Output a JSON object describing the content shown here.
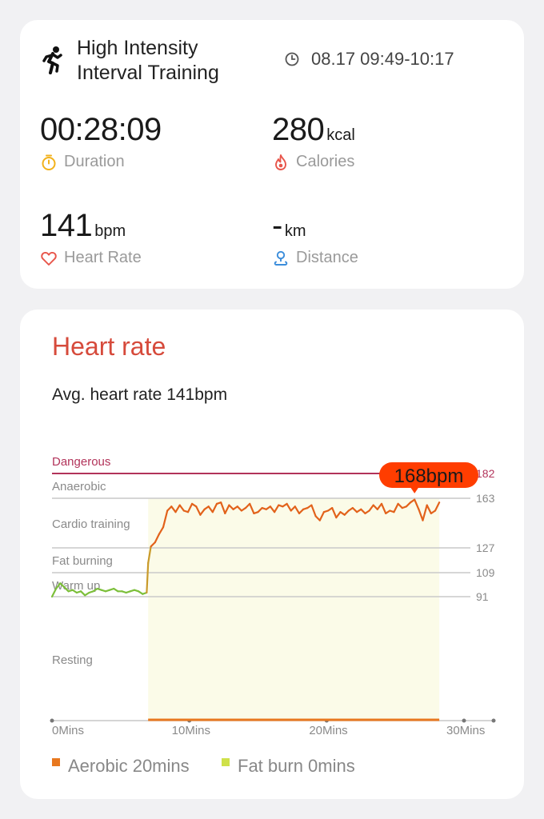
{
  "workout": {
    "icon": "running-person-icon",
    "title_line1": "High Intensity",
    "title_line2": "Interval Training",
    "time_icon": "clock-icon",
    "time_range": "08.17 09:49-10:17"
  },
  "metrics": {
    "duration": {
      "value": "00:28:09",
      "unit": "",
      "label": "Duration",
      "icon": "stopwatch-icon",
      "icon_color": "#f2b21c"
    },
    "calories": {
      "value": "280",
      "unit": "kcal",
      "label": "Calories",
      "icon": "flame-icon",
      "icon_color": "#e8554a"
    },
    "heart_rate": {
      "value": "141",
      "unit": "bpm",
      "label": "Heart Rate",
      "icon": "heart-icon",
      "icon_color": "#e8554a"
    },
    "distance": {
      "value": "-",
      "unit": "km",
      "label": "Distance",
      "icon": "location-pin-icon",
      "icon_color": "#3b8ddb"
    }
  },
  "heart_rate_section": {
    "title": "Heart rate",
    "title_color": "#d64a3b",
    "avg_text": "Avg. heart rate 141bpm"
  },
  "chart_data": {
    "type": "line",
    "title": "",
    "xlabel": "",
    "ylabel": "",
    "x_ticks": [
      "0Mins",
      "10Mins",
      "20Mins",
      "30Mins"
    ],
    "xlim": [
      0,
      30
    ],
    "zones": [
      {
        "name": "Dangerous",
        "threshold": 182,
        "threshold_label": "182",
        "color": "#b2335a"
      },
      {
        "name": "Anaerobic",
        "threshold": 163,
        "threshold_label": "163",
        "color": "#c9c9c9"
      },
      {
        "name": "Cardio training",
        "threshold": 127,
        "threshold_label": "127",
        "color": "#c9c9c9"
      },
      {
        "name": "Fat burning",
        "threshold": 109,
        "threshold_label": "109",
        "color": "#c9c9c9"
      },
      {
        "name": "Warm up",
        "threshold": 91,
        "threshold_label": "91",
        "color": "#c9c9c9"
      },
      {
        "name": "Resting",
        "threshold": null,
        "threshold_label": "",
        "color": "#c9c9c9"
      }
    ],
    "series": [
      {
        "name": "",
        "color_low": "#7cbf3a",
        "color_high": "#e2621b",
        "x": [
          0,
          0.3,
          0.6,
          0.9,
          1.2,
          1.5,
          1.8,
          2.1,
          2.4,
          2.7,
          3.0,
          3.3,
          3.6,
          3.9,
          4.2,
          4.5,
          4.8,
          5.1,
          5.4,
          5.7,
          6.0,
          6.3,
          6.6,
          6.9,
          7.0,
          7.2,
          7.5,
          7.8,
          8.1,
          8.4,
          8.7,
          9.0,
          9.3,
          9.6,
          9.9,
          10.2,
          10.5,
          10.8,
          11.1,
          11.4,
          11.7,
          12.0,
          12.3,
          12.6,
          12.9,
          13.2,
          13.5,
          13.8,
          14.1,
          14.4,
          14.7,
          15.0,
          15.3,
          15.6,
          15.9,
          16.2,
          16.5,
          16.8,
          17.1,
          17.4,
          17.7,
          18.0,
          18.3,
          18.6,
          18.9,
          19.2,
          19.5,
          19.8,
          20.1,
          20.4,
          20.7,
          21.0,
          21.3,
          21.6,
          21.9,
          22.2,
          22.5,
          22.8,
          23.1,
          23.4,
          23.7,
          24.0,
          24.3,
          24.6,
          24.9,
          25.2,
          25.5,
          25.8,
          26.1,
          26.4,
          26.7,
          27.0,
          27.3,
          27.6,
          27.9,
          28.2
        ],
        "y": [
          91,
          97,
          101,
          98,
          95,
          96,
          94,
          95,
          92,
          94,
          95,
          97,
          96,
          95,
          96,
          97,
          95,
          95,
          94,
          95,
          96,
          95,
          93,
          94,
          116,
          128,
          131,
          137,
          142,
          154,
          157,
          153,
          158,
          154,
          153,
          159,
          157,
          151,
          155,
          157,
          153,
          159,
          160,
          152,
          158,
          155,
          157,
          154,
          156,
          159,
          152,
          153,
          156,
          155,
          157,
          153,
          158,
          157,
          159,
          154,
          157,
          152,
          155,
          156,
          158,
          150,
          147,
          153,
          154,
          156,
          149,
          153,
          151,
          154,
          156,
          153,
          155,
          152,
          154,
          158,
          155,
          159,
          152,
          154,
          153,
          159,
          156,
          157,
          160,
          162,
          155,
          147,
          158,
          152,
          154,
          160
        ],
        "peak": {
          "x": 26.4,
          "y": 168,
          "label": "168bpm"
        }
      }
    ],
    "highlight_band": {
      "x_start": 7.0,
      "x_end": 28.2,
      "color": "#fbfbe8"
    },
    "legend": [
      {
        "label": "Aerobic 20mins",
        "color": "#e8781f"
      },
      {
        "label": "Fat burn 0mins",
        "color": "#cfe14a"
      }
    ],
    "legend_position": "bottom-left"
  }
}
